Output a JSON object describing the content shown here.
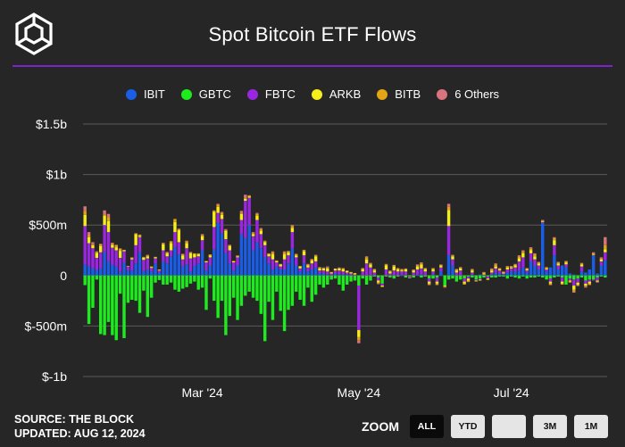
{
  "header": {
    "title": "Spot Bitcoin ETF Flows",
    "logo_icon": "the-block-cube-logo"
  },
  "legend": [
    {
      "name": "IBIT",
      "color": "#1a5ee8"
    },
    {
      "name": "GBTC",
      "color": "#1eeb1e"
    },
    {
      "name": "FBTC",
      "color": "#9b26e0"
    },
    {
      "name": "ARKB",
      "color": "#f5ee1a"
    },
    {
      "name": "BITB",
      "color": "#e3a416"
    },
    {
      "name": "6 Others",
      "color": "#d9747e"
    }
  ],
  "chart_data": {
    "type": "bar",
    "stacked": true,
    "title": "Spot Bitcoin ETF Flows",
    "xlabel": "",
    "ylabel": "",
    "ylim": [
      -1000,
      1500
    ],
    "y_unit": "millions USD",
    "y_ticks": [
      {
        "value": 1500,
        "label": "$1.5b"
      },
      {
        "value": 1000,
        "label": "$1b"
      },
      {
        "value": 500,
        "label": "$500m"
      },
      {
        "value": 0,
        "label": "0"
      },
      {
        "value": -500,
        "label": "$-500m"
      },
      {
        "value": -1000,
        "label": "$-1b"
      }
    ],
    "x_ticks": [
      {
        "label": "Mar '24",
        "index": 30
      },
      {
        "label": "May '24",
        "index": 70
      },
      {
        "label": "Jul '24",
        "index": 109
      }
    ],
    "grid": true,
    "legend_position": "top",
    "series_names": [
      "IBIT",
      "GBTC",
      "FBTC",
      "ARKB",
      "BITB",
      "6 Others"
    ],
    "series_colors": [
      "#1a5ee8",
      "#1eeb1e",
      "#9b26e0",
      "#f5ee1a",
      "#e3a416",
      "#d9747e"
    ],
    "days": [
      [
        110,
        -95,
        380,
        110,
        40,
        45
      ],
      [
        90,
        -480,
        230,
        60,
        20,
        30
      ],
      [
        70,
        -320,
        200,
        30,
        10,
        20
      ],
      [
        55,
        -40,
        120,
        50,
        10,
        5
      ],
      [
        70,
        -580,
        160,
        60,
        20,
        5
      ],
      [
        230,
        -590,
        270,
        90,
        15,
        40
      ],
      [
        140,
        -460,
        290,
        110,
        40,
        30
      ],
      [
        105,
        -590,
        170,
        30,
        10,
        10
      ],
      [
        90,
        -640,
        160,
        30,
        20,
        5
      ],
      [
        35,
        -180,
        140,
        70,
        20,
        5
      ],
      [
        130,
        -620,
        110,
        10,
        0,
        5
      ],
      [
        50,
        -270,
        40,
        5,
        0,
        0
      ],
      [
        50,
        -240,
        110,
        10,
        5,
        5
      ],
      [
        120,
        -250,
        180,
        110,
        5,
        5
      ],
      [
        230,
        -370,
        150,
        10,
        15,
        0
      ],
      [
        45,
        -150,
        110,
        20,
        5,
        5
      ],
      [
        60,
        -410,
        110,
        20,
        10,
        5
      ],
      [
        40,
        -220,
        35,
        10,
        5,
        0
      ],
      [
        120,
        -70,
        50,
        10,
        5,
        0
      ],
      [
        30,
        -45,
        20,
        5,
        5,
        0
      ],
      [
        140,
        -90,
        110,
        60,
        10,
        5
      ],
      [
        120,
        -90,
        70,
        30,
        10,
        5
      ],
      [
        190,
        -70,
        60,
        70,
        20,
        0
      ],
      [
        280,
        -140,
        150,
        100,
        30,
        0
      ],
      [
        210,
        -160,
        120,
        120,
        10,
        5
      ],
      [
        90,
        -130,
        70,
        40,
        10,
        5
      ],
      [
        110,
        -115,
        160,
        50,
        20,
        5
      ],
      [
        40,
        -80,
        130,
        50,
        10,
        5
      ],
      [
        100,
        -60,
        80,
        30,
        10,
        0
      ],
      [
        120,
        -140,
        70,
        20,
        5,
        5
      ],
      [
        250,
        -120,
        100,
        40,
        10,
        10
      ],
      [
        50,
        -340,
        80,
        10,
        0,
        5
      ],
      [
        100,
        -30,
        80,
        20,
        5,
        5
      ],
      [
        260,
        -250,
        220,
        150,
        10,
        5
      ],
      [
        520,
        -420,
        100,
        60,
        20,
        10
      ],
      [
        420,
        -250,
        140,
        40,
        20,
        10
      ],
      [
        220,
        -590,
        140,
        80,
        10,
        10
      ],
      [
        120,
        -400,
        130,
        40,
        10,
        5
      ],
      [
        50,
        -220,
        80,
        10,
        5,
        0
      ],
      [
        100,
        -440,
        80,
        10,
        5,
        5
      ],
      [
        410,
        -300,
        140,
        60,
        10,
        20
      ],
      [
        370,
        -200,
        370,
        20,
        10,
        30
      ],
      [
        500,
        -160,
        270,
        10,
        10,
        5
      ],
      [
        250,
        -220,
        140,
        20,
        10,
        10
      ],
      [
        330,
        -250,
        220,
        40,
        20,
        10
      ],
      [
        270,
        -380,
        140,
        30,
        20,
        10
      ],
      [
        180,
        -650,
        120,
        30,
        10,
        5
      ],
      [
        120,
        -260,
        70,
        20,
        5,
        5
      ],
      [
        60,
        -440,
        100,
        50,
        20,
        10
      ],
      [
        90,
        -160,
        40,
        10,
        5,
        5
      ],
      [
        60,
        -350,
        30,
        20,
        5,
        0
      ],
      [
        60,
        -550,
        100,
        50,
        20,
        10
      ],
      [
        120,
        -340,
        80,
        30,
        10,
        5
      ],
      [
        270,
        -300,
        160,
        40,
        20,
        10
      ],
      [
        100,
        -160,
        80,
        20,
        10,
        5
      ],
      [
        40,
        -240,
        30,
        20,
        5,
        0
      ],
      [
        120,
        -300,
        80,
        40,
        10,
        5
      ],
      [
        40,
        -120,
        40,
        20,
        10,
        5
      ],
      [
        60,
        -260,
        60,
        30,
        10,
        5
      ],
      [
        80,
        -190,
        60,
        50,
        10,
        5
      ],
      [
        20,
        -90,
        30,
        20,
        10,
        5
      ],
      [
        20,
        -120,
        30,
        20,
        5,
        5
      ],
      [
        10,
        -90,
        30,
        30,
        10,
        10
      ],
      [
        0,
        -40,
        20,
        10,
        5,
        0
      ],
      [
        20,
        -30,
        30,
        15,
        5,
        0
      ],
      [
        10,
        -90,
        40,
        20,
        5,
        5
      ],
      [
        10,
        -150,
        30,
        20,
        10,
        5
      ],
      [
        10,
        -90,
        20,
        15,
        5,
        0
      ],
      [
        0,
        -60,
        20,
        10,
        5,
        0
      ],
      [
        0,
        -50,
        10,
        10,
        5,
        0
      ],
      [
        0,
        -100,
        -440,
        -70,
        -30,
        -30
      ],
      [
        0,
        -30,
        40,
        20,
        10,
        5
      ],
      [
        0,
        -90,
        120,
        40,
        20,
        10
      ],
      [
        0,
        -50,
        80,
        30,
        10,
        5
      ],
      [
        0,
        -10,
        30,
        20,
        10,
        5
      ],
      [
        0,
        -20,
        -30,
        -20,
        -10,
        -5
      ],
      [
        0,
        -80,
        -20,
        -10,
        -5,
        0
      ],
      [
        0,
        -10,
        60,
        40,
        10,
        5
      ],
      [
        0,
        -20,
        20,
        20,
        5,
        5
      ],
      [
        0,
        -30,
        50,
        40,
        10,
        5
      ],
      [
        0,
        -10,
        40,
        20,
        10,
        5
      ],
      [
        10,
        0,
        30,
        10,
        10,
        5
      ],
      [
        0,
        -20,
        40,
        20,
        5,
        5
      ],
      [
        0,
        -10,
        -10,
        -5,
        0,
        0
      ],
      [
        0,
        -20,
        30,
        20,
        5,
        5
      ],
      [
        10,
        0,
        50,
        30,
        10,
        10
      ],
      [
        10,
        -20,
        60,
        40,
        10,
        10
      ],
      [
        0,
        -10,
        40,
        20,
        10,
        5
      ],
      [
        0,
        -30,
        -30,
        -20,
        -10,
        -5
      ],
      [
        10,
        -30,
        30,
        20,
        10,
        5
      ],
      [
        0,
        -20,
        -40,
        -20,
        -10,
        -5
      ],
      [
        40,
        0,
        40,
        15,
        10,
        5
      ],
      [
        0,
        -100,
        0,
        -10,
        -5,
        -5
      ],
      [
        200,
        -40,
        290,
        160,
        30,
        30
      ],
      [
        100,
        -30,
        60,
        30,
        10,
        5
      ],
      [
        0,
        -60,
        30,
        20,
        10,
        5
      ],
      [
        0,
        -40,
        50,
        20,
        10,
        5
      ],
      [
        0,
        -30,
        -30,
        -20,
        -10,
        0
      ],
      [
        0,
        -10,
        -20,
        -20,
        -10,
        -5
      ],
      [
        10,
        -20,
        20,
        20,
        10,
        5
      ],
      [
        0,
        -40,
        -10,
        -5,
        -5,
        0
      ],
      [
        10,
        -30,
        -10,
        -10,
        0,
        0
      ],
      [
        0,
        -20,
        10,
        10,
        10,
        5
      ],
      [
        0,
        -10,
        -20,
        -10,
        -5,
        0
      ],
      [
        10,
        -20,
        20,
        20,
        10,
        10
      ],
      [
        30,
        -20,
        40,
        20,
        20,
        10
      ],
      [
        20,
        -10,
        30,
        10,
        10,
        5
      ],
      [
        10,
        -10,
        10,
        10,
        5,
        5
      ],
      [
        30,
        -30,
        30,
        20,
        10,
        5
      ],
      [
        40,
        -10,
        30,
        10,
        10,
        5
      ],
      [
        40,
        -20,
        40,
        20,
        10,
        5
      ],
      [
        50,
        -30,
        90,
        30,
        20,
        10
      ],
      [
        80,
        -10,
        100,
        40,
        20,
        10
      ],
      [
        30,
        -30,
        20,
        10,
        10,
        5
      ],
      [
        140,
        -20,
        80,
        30,
        20,
        10
      ],
      [
        100,
        -20,
        60,
        30,
        20,
        10
      ],
      [
        60,
        -10,
        40,
        20,
        10,
        5
      ],
      [
        520,
        -20,
        10,
        10,
        5,
        5
      ],
      [
        40,
        -40,
        20,
        10,
        10,
        5
      ],
      [
        80,
        -30,
        -30,
        -20,
        -10,
        -5
      ],
      [
        200,
        -20,
        100,
        50,
        20,
        10
      ],
      [
        60,
        -10,
        40,
        20,
        10,
        5
      ],
      [
        100,
        -20,
        -40,
        -20,
        -10,
        0
      ],
      [
        80,
        -90,
        30,
        20,
        10,
        5
      ],
      [
        20,
        -30,
        -20,
        -10,
        -10,
        0
      ],
      [
        10,
        -40,
        -60,
        -40,
        -20,
        -10
      ],
      [
        0,
        -30,
        -40,
        -20,
        -10,
        -5
      ],
      [
        40,
        -20,
        50,
        20,
        10,
        5
      ],
      [
        30,
        -50,
        -30,
        -20,
        -10,
        -10
      ],
      [
        60,
        -40,
        -20,
        -20,
        -10,
        -5
      ],
      [
        200,
        -40,
        -10,
        0,
        20,
        10
      ],
      [
        20,
        -20,
        -30,
        -10,
        -5,
        -5
      ],
      [
        100,
        -10,
        40,
        20,
        10,
        10
      ],
      [
        150,
        -20,
        80,
        30,
        40,
        80
      ]
    ]
  },
  "x_labels": [
    "Mar '24",
    "May '24",
    "Jul '24"
  ],
  "footer": {
    "source": "SOURCE: THE BLOCK",
    "updated": "UPDATED: AUG 12, 2024"
  },
  "zoom": {
    "label": "ZOOM",
    "buttons": [
      {
        "label": "ALL",
        "active": true
      },
      {
        "label": "YTD",
        "active": false
      },
      {
        "label": "",
        "active": false
      },
      {
        "label": "3M",
        "active": false
      },
      {
        "label": "1M",
        "active": false
      }
    ]
  }
}
